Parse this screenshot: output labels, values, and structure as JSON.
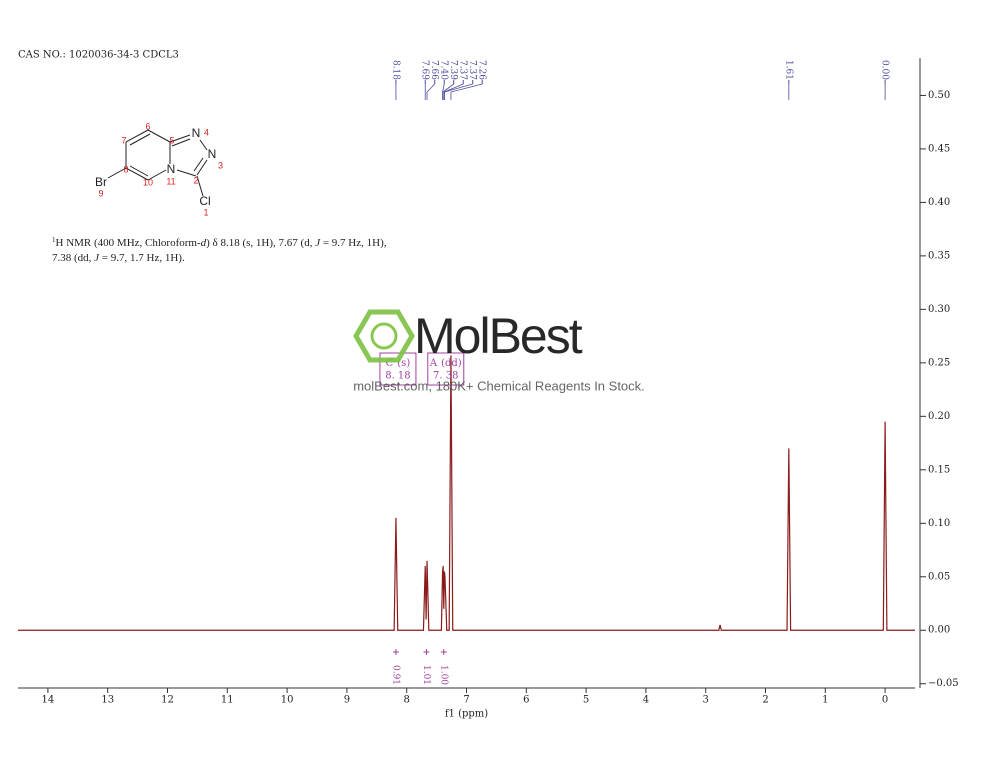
{
  "header": "CAS NO.: 1020036-34-3 CDCL3",
  "structure": {
    "atoms": [
      "N",
      "N",
      "N",
      "Br",
      "Cl"
    ],
    "numbers": [
      "4",
      "3",
      "11",
      "2",
      "1",
      "9",
      "6",
      "7",
      "8",
      "5",
      "10"
    ]
  },
  "nmr_text": [
    [
      "1",
      "H NMR (400 MHz, Chloroform-",
      "d",
      ") δ 8.18 (s, 1H), 7.67 (d, ",
      "J",
      " = 9.7 Hz, 1H),"
    ],
    [
      "7.38 (dd, ",
      "J",
      " = 9.7, 1.7 Hz, 1H)."
    ]
  ],
  "watermark": {
    "logo": "MolBest",
    "text": "molBest.com, 180K+ Chemical Reagents In Stock."
  },
  "chart_data": {
    "type": "line",
    "x_label": "f1 (ppm)",
    "color": "#8b1a1a",
    "x": [
      14.5,
      8.21,
      8.18,
      8.15,
      7.72,
      7.69,
      7.675,
      7.66,
      7.63,
      7.42,
      7.4,
      7.39,
      7.38,
      7.37,
      7.36,
      7.33,
      7.29,
      7.26,
      7.23,
      2.78,
      2.76,
      2.74,
      1.64,
      1.61,
      1.58,
      0.03,
      0,
      -0.03,
      -0.5
    ],
    "values": [
      0,
      0,
      0.105,
      0,
      0,
      0.06,
      0.01,
      0.065,
      0,
      0,
      0.055,
      0.06,
      0.02,
      0.055,
      0.05,
      0,
      0,
      0.257,
      0,
      0,
      0.005,
      0,
      0,
      0.17,
      0,
      0,
      0.195,
      0,
      0
    ],
    "xlim": [
      14.5,
      -0.5
    ],
    "xticks": [
      14,
      13,
      12,
      11,
      10,
      9,
      8,
      7,
      6,
      5,
      4,
      3,
      2,
      1,
      0
    ],
    "ylim": [
      -0.054,
      0.535
    ],
    "yticks": [
      {
        "value": -0.05,
        "label": "−0.05"
      },
      {
        "value": 0,
        "label": "0.00"
      },
      0.05,
      {
        "value": 0.1,
        "label": "0.10"
      },
      0.15,
      {
        "value": 0.2,
        "label": "0.20"
      },
      0.25,
      {
        "value": 0.3,
        "label": "0.30"
      },
      0.35,
      {
        "value": 0.4,
        "label": "0.40"
      },
      0.45,
      {
        "value": 0.5,
        "label": "0.50"
      }
    ],
    "peaks": {
      "values": [
        8.18,
        7.69,
        7.66,
        7.4,
        7.39,
        7.37,
        7.37,
        7.26,
        1.61,
        0
      ],
      "value_labels": [
        "8.18",
        "7.69",
        "7.66",
        "7.40",
        "7.39",
        "7.37",
        "7.37",
        "7.26",
        "1.61",
        "0.00"
      ]
    },
    "integrals": {
      "x": [
        8.18,
        7.67,
        7.38
      ],
      "values": [
        0.91,
        1.01,
        1.0
      ],
      "value_labels": [
        "0.91",
        "1.01",
        "1.00"
      ]
    },
    "multiplets": {
      "names": [
        "C",
        "A"
      ],
      "types": [
        "(s)",
        "(dd)"
      ],
      "values": [
        8.18,
        7.38
      ],
      "value_labels": [
        "8. 18",
        "7. 38"
      ]
    }
  }
}
